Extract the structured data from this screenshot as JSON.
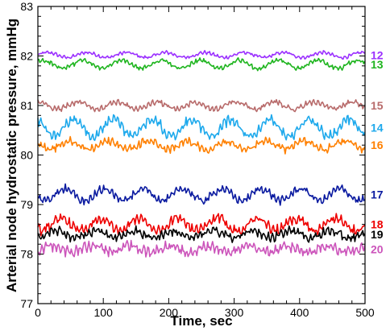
{
  "chart_data": {
    "type": "line",
    "title": "",
    "xlabel": "Time, sec",
    "ylabel": "Arterial node hydrostatic pressure, mmHg",
    "xlim": [
      0,
      500
    ],
    "ylim": [
      77,
      83
    ],
    "xticks": [
      0,
      100,
      200,
      300,
      400,
      500
    ],
    "yticks": [
      77,
      78,
      79,
      80,
      81,
      82,
      83
    ],
    "grid": false,
    "legend": "right-edge labels",
    "series": [
      {
        "name": "12",
        "color": "#9b30ff",
        "mean": 82.02,
        "amp": 0.05,
        "period": 60,
        "noise": 0.03
      },
      {
        "name": "13",
        "color": "#1fb51f",
        "mean": 81.83,
        "amp": 0.08,
        "period": 60,
        "noise": 0.04
      },
      {
        "name": "15",
        "color": "#b86b6b",
        "mean": 81.0,
        "amp": 0.07,
        "period": 60,
        "noise": 0.05
      },
      {
        "name": "14",
        "color": "#1ea9ec",
        "mean": 80.55,
        "amp": 0.17,
        "period": 60,
        "noise": 0.09
      },
      {
        "name": "16",
        "color": "#ff8000",
        "mean": 80.2,
        "amp": 0.08,
        "period": 60,
        "noise": 0.07
      },
      {
        "name": "17",
        "color": "#0a1aa0",
        "mean": 79.2,
        "amp": 0.12,
        "period": 60,
        "noise": 0.07
      },
      {
        "name": "18",
        "color": "#ee0000",
        "mean": 78.6,
        "amp": 0.12,
        "period": 60,
        "noise": 0.09
      },
      {
        "name": "19",
        "color": "#000000",
        "mean": 78.4,
        "amp": 0.07,
        "period": 60,
        "noise": 0.08
      },
      {
        "name": "20",
        "color": "#cc55bb",
        "mean": 78.1,
        "amp": 0.06,
        "period": 60,
        "noise": 0.09
      }
    ]
  }
}
